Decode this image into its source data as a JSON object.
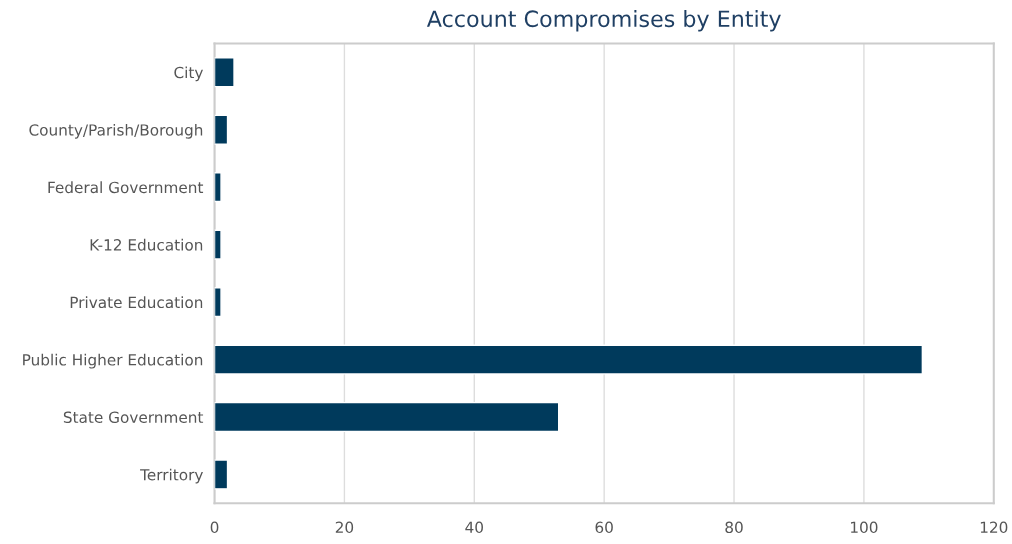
{
  "chart_data": {
    "type": "bar",
    "orientation": "horizontal",
    "title": "Account Compromises by Entity",
    "categories": [
      "City",
      "County/Parish/Borough",
      "Federal Government",
      "K-12 Education",
      "Private Education",
      "Public Higher Education",
      "State Government",
      "Territory"
    ],
    "values": [
      3,
      2,
      1,
      1,
      1,
      109,
      53,
      2
    ],
    "color": "#003a5c",
    "xlim": [
      0,
      120
    ],
    "xticks": [
      0,
      20,
      40,
      60,
      80,
      100,
      120
    ],
    "grid": "x",
    "legend": false
  }
}
